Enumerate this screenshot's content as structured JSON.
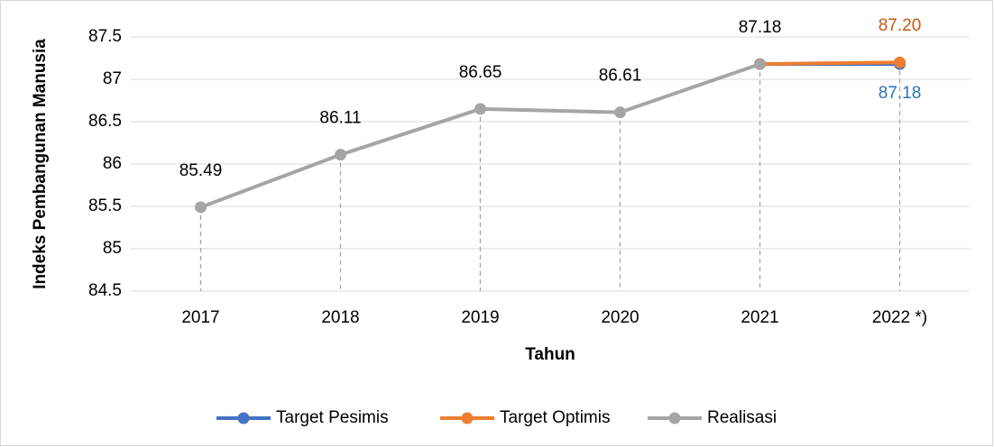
{
  "chart_data": {
    "type": "line",
    "y_axis_label": "Indeks Pembangunan Manusia",
    "x_axis_label": "Tahun",
    "categories": [
      "2017",
      "2018",
      "2019",
      "2020",
      "2021",
      "2022 *)"
    ],
    "series": [
      {
        "name": "Target Pesimis",
        "color": "#4472c4",
        "label_color": "#2e75b6",
        "label_position": "below",
        "values": [
          null,
          null,
          null,
          null,
          87.18,
          87.18
        ],
        "value_labels": [
          null,
          null,
          null,
          null,
          null,
          "87.18"
        ]
      },
      {
        "name": "Target Optimis",
        "color": "#ed7d31",
        "label_color": "#c55a11",
        "label_position": "above",
        "values": [
          null,
          null,
          null,
          null,
          87.18,
          87.2
        ],
        "value_labels": [
          null,
          null,
          null,
          null,
          null,
          "87.20"
        ]
      },
      {
        "name": "Realisasi",
        "color": "#a5a5a5",
        "label_color": "#000000",
        "label_position": "above",
        "values": [
          85.49,
          86.11,
          86.65,
          86.61,
          87.18,
          null
        ],
        "value_labels": [
          "85.49",
          "86.11",
          "86.65",
          "86.61",
          "87.18",
          null
        ]
      }
    ],
    "ylim": [
      84.5,
      87.5
    ],
    "yticks": [
      84.5,
      85,
      85.5,
      86,
      86.5,
      87,
      87.5
    ],
    "grid": true,
    "drop_lines": true,
    "legend": "bottom"
  }
}
